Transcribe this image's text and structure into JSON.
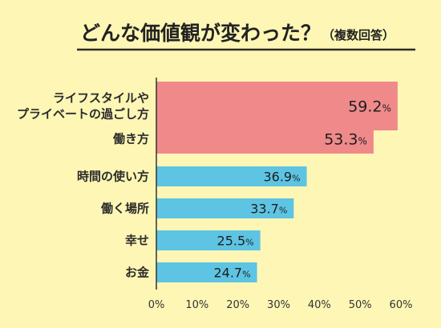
{
  "header": {
    "title": "どんな価値観が変わった？",
    "subtitle": "（複数回答）"
  },
  "chart_data": {
    "type": "bar",
    "orientation": "horizontal",
    "categories": [
      [
        "ライフスタイルや",
        "プライベートの過ごし方"
      ],
      [
        "働き方"
      ],
      [
        "時間の使い方"
      ],
      [
        "働く場所"
      ],
      [
        "幸せ"
      ],
      [
        "お金"
      ]
    ],
    "values": [
      59.2,
      53.3,
      36.9,
      33.7,
      25.5,
      24.7
    ],
    "value_labels": [
      "59.2",
      "53.3",
      "36.9",
      "33.7",
      "25.5",
      "24.7"
    ],
    "value_unit": "%",
    "bar_colors": [
      "#f08a8a",
      "#f08a8a",
      "#5ec4e3",
      "#5ec4e3",
      "#5ec4e3",
      "#5ec4e3"
    ],
    "x_ticks": [
      "0%",
      "10%",
      "20%",
      "30%",
      "40%",
      "50%",
      "60%"
    ],
    "xlim": [
      0,
      60
    ],
    "grid": false,
    "axis_color": "#333333"
  }
}
